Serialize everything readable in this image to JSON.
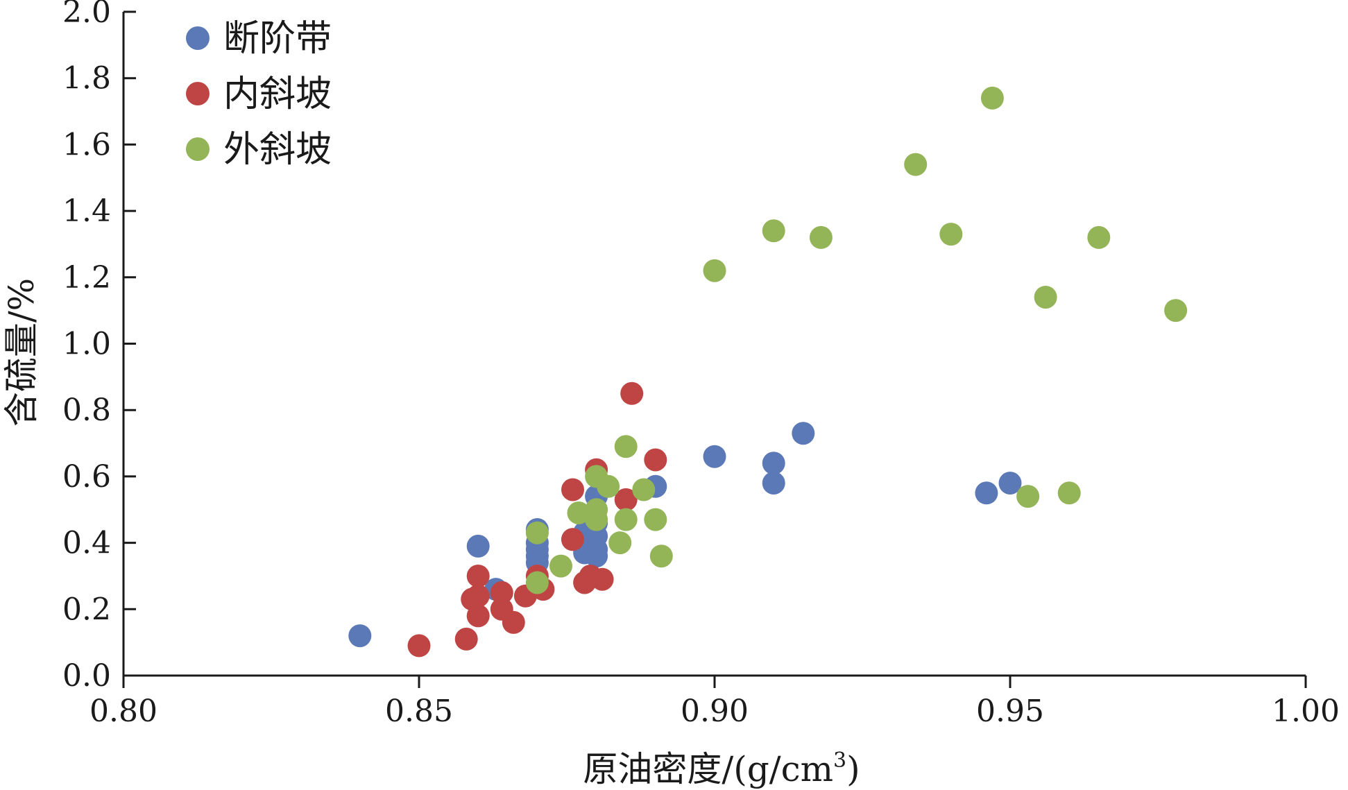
{
  "chart_data": {
    "type": "scatter",
    "xlabel": "原油密度/(g/cm",
    "xlabel_sup": "3",
    "xlabel_close": ")",
    "ylabel": "含硫量/%",
    "xlim": [
      0.8,
      1.0
    ],
    "ylim": [
      0.0,
      2.0
    ],
    "x_ticks": [
      "0.80",
      "0.85",
      "0.90",
      "0.95",
      "1.00"
    ],
    "y_ticks": [
      "0.0",
      "0.2",
      "0.4",
      "0.6",
      "0.8",
      "1.0",
      "1.2",
      "1.4",
      "1.6",
      "1.8",
      "2.0"
    ],
    "grid": false,
    "legend_position": "top-left",
    "series": [
      {
        "name": "断阶带",
        "color": "#5b79b7",
        "points": [
          [
            0.84,
            0.12
          ],
          [
            0.86,
            0.39
          ],
          [
            0.863,
            0.26
          ],
          [
            0.87,
            0.44
          ],
          [
            0.87,
            0.4
          ],
          [
            0.87,
            0.38
          ],
          [
            0.87,
            0.36
          ],
          [
            0.87,
            0.34
          ],
          [
            0.876,
            0.41
          ],
          [
            0.878,
            0.43
          ],
          [
            0.878,
            0.39
          ],
          [
            0.878,
            0.37
          ],
          [
            0.88,
            0.54
          ],
          [
            0.88,
            0.46
          ],
          [
            0.88,
            0.42
          ],
          [
            0.88,
            0.38
          ],
          [
            0.88,
            0.36
          ],
          [
            0.89,
            0.57
          ],
          [
            0.9,
            0.66
          ],
          [
            0.91,
            0.64
          ],
          [
            0.91,
            0.58
          ],
          [
            0.915,
            0.73
          ],
          [
            0.946,
            0.55
          ],
          [
            0.95,
            0.58
          ]
        ]
      },
      {
        "name": "内斜坡",
        "color": "#bf4545",
        "points": [
          [
            0.85,
            0.09
          ],
          [
            0.858,
            0.11
          ],
          [
            0.859,
            0.23
          ],
          [
            0.86,
            0.3
          ],
          [
            0.86,
            0.24
          ],
          [
            0.86,
            0.18
          ],
          [
            0.864,
            0.25
          ],
          [
            0.864,
            0.2
          ],
          [
            0.866,
            0.16
          ],
          [
            0.868,
            0.24
          ],
          [
            0.87,
            0.3
          ],
          [
            0.871,
            0.26
          ],
          [
            0.876,
            0.41
          ],
          [
            0.876,
            0.56
          ],
          [
            0.878,
            0.28
          ],
          [
            0.879,
            0.3
          ],
          [
            0.88,
            0.62
          ],
          [
            0.881,
            0.29
          ],
          [
            0.885,
            0.53
          ],
          [
            0.886,
            0.85
          ],
          [
            0.89,
            0.65
          ]
        ]
      },
      {
        "name": "外斜坡",
        "color": "#93b457",
        "points": [
          [
            0.87,
            0.43
          ],
          [
            0.87,
            0.28
          ],
          [
            0.874,
            0.33
          ],
          [
            0.877,
            0.49
          ],
          [
            0.88,
            0.6
          ],
          [
            0.88,
            0.5
          ],
          [
            0.88,
            0.47
          ],
          [
            0.882,
            0.57
          ],
          [
            0.884,
            0.4
          ],
          [
            0.885,
            0.69
          ],
          [
            0.885,
            0.47
          ],
          [
            0.888,
            0.56
          ],
          [
            0.89,
            0.47
          ],
          [
            0.891,
            0.36
          ],
          [
            0.9,
            1.22
          ],
          [
            0.91,
            1.34
          ],
          [
            0.918,
            1.32
          ],
          [
            0.934,
            1.54
          ],
          [
            0.94,
            1.33
          ],
          [
            0.947,
            1.74
          ],
          [
            0.953,
            0.54
          ],
          [
            0.956,
            1.14
          ],
          [
            0.96,
            0.55
          ],
          [
            0.965,
            1.32
          ],
          [
            0.978,
            1.1
          ]
        ]
      }
    ]
  }
}
